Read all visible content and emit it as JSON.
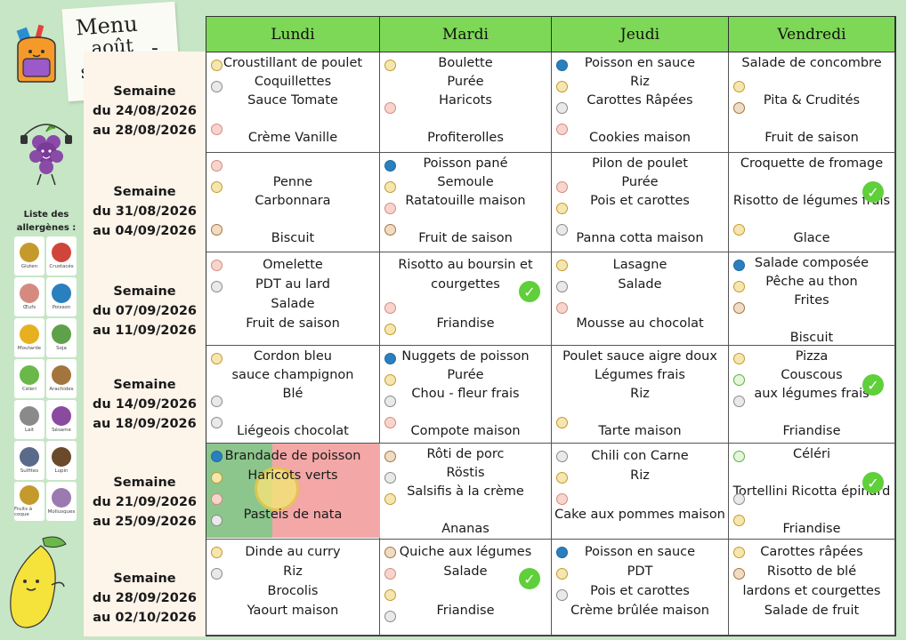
{
  "title": {
    "line1": "Menu",
    "line2": "août",
    "line3": "septembre",
    "dash": "-"
  },
  "allergens": {
    "title": "Liste des allergènes :",
    "items": [
      {
        "label": "Gluten",
        "icon": "wheat-icon",
        "color": "#c49a2c"
      },
      {
        "label": "Crustacés",
        "icon": "crab-icon",
        "color": "#d0453a"
      },
      {
        "label": "Œufs",
        "icon": "egg-icon",
        "color": "#d58a80"
      },
      {
        "label": "Poisson",
        "icon": "fish-icon",
        "color": "#2a7fbf"
      },
      {
        "label": "Moutarde",
        "icon": "mustard-icon",
        "color": "#e6b020"
      },
      {
        "label": "Soja",
        "icon": "soy-icon",
        "color": "#5fa04a"
      },
      {
        "label": "Céleri",
        "icon": "celery-icon",
        "color": "#6ab84a"
      },
      {
        "label": "Arachides",
        "icon": "peanut-icon",
        "color": "#a4743e"
      },
      {
        "label": "Lait",
        "icon": "milk-icon",
        "color": "#8a8a8a"
      },
      {
        "label": "Sésame",
        "icon": "sesame-icon",
        "color": "#8a4aa0"
      },
      {
        "label": "Sulfites",
        "icon": "sulfite-icon",
        "color": "#5a6a8a"
      },
      {
        "label": "Lupin",
        "icon": "lupin-icon",
        "color": "#6a4a2a"
      },
      {
        "label": "Fruits à coque",
        "icon": "nut-icon",
        "color": "#c49a2c"
      },
      {
        "label": "Mollusques",
        "icon": "shell-icon",
        "color": "#9a7ab0"
      }
    ]
  },
  "days": [
    "Lundi",
    "Mardi",
    "Jeudi",
    "Vendredi"
  ],
  "weeks": [
    {
      "label": "Semaine",
      "from": "du 24/08/2026",
      "to": "au 28/08/2026"
    },
    {
      "label": "Semaine",
      "from": "du 31/08/2026",
      "to": "au 04/09/2026"
    },
    {
      "label": "Semaine",
      "from": "du 07/09/2026",
      "to": "au 11/09/2026"
    },
    {
      "label": "Semaine",
      "from": "du 14/09/2026",
      "to": "au 18/09/2026"
    },
    {
      "label": "Semaine",
      "from": "du 21/09/2026",
      "to": "au 25/09/2026"
    },
    {
      "label": "Semaine",
      "from": "du 28/09/2026",
      "to": "au 02/10/2026"
    }
  ],
  "menu": [
    [
      {
        "lines": [
          "Croustillant de poulet",
          "Coquillettes",
          "Sauce Tomate",
          "",
          "Crème Vanille"
        ],
        "icons": [
          "g",
          "l",
          "",
          "o"
        ],
        "check": false
      },
      {
        "lines": [
          "Boulette",
          "Purée",
          "Haricots",
          "",
          "Profiterolles"
        ],
        "icons": [
          "g",
          "",
          "o",
          ""
        ],
        "check": false
      },
      {
        "lines": [
          "Poisson en sauce",
          "Riz",
          "Carottes Râpées",
          "",
          "Cookies maison"
        ],
        "icons": [
          "f",
          "g",
          "l",
          "o"
        ],
        "check": false
      },
      {
        "lines": [
          "Salade de concombre",
          "",
          "Pita & Crudités",
          "",
          "Fruit de saison"
        ],
        "icons": [
          "",
          "g",
          "a",
          ""
        ],
        "check": false
      }
    ],
    [
      {
        "lines": [
          "",
          "Penne",
          "Carbonnara",
          "",
          "Biscuit"
        ],
        "icons": [
          "o",
          "g",
          "",
          "a"
        ],
        "check": false
      },
      {
        "lines": [
          "Poisson pané",
          "Semoule",
          "Ratatouille maison",
          "",
          "Fruit de saison"
        ],
        "icons": [
          "f",
          "g",
          "o",
          "a"
        ],
        "check": false
      },
      {
        "lines": [
          "Pilon de poulet",
          "Purée",
          "Pois et carottes",
          "",
          "Panna cotta maison"
        ],
        "icons": [
          "",
          "o",
          "g",
          "l"
        ],
        "check": false
      },
      {
        "lines": [
          "Croquette de fromage",
          "",
          "Risotto de légumes frais",
          "",
          "Glace"
        ],
        "icons": [
          "",
          "",
          "",
          "g"
        ],
        "check": true
      }
    ],
    [
      {
        "lines": [
          "Omelette",
          "PDT au lard",
          "Salade",
          "Fruit de saison"
        ],
        "icons": [
          "o",
          "l",
          "",
          ""
        ],
        "check": false
      },
      {
        "lines": [
          "Risotto au boursin et",
          "courgettes",
          "",
          "Friandise"
        ],
        "icons": [
          "",
          "",
          "o",
          "g"
        ],
        "check": true
      },
      {
        "lines": [
          "Lasagne",
          "Salade",
          "",
          "Mousse au chocolat"
        ],
        "icons": [
          "g",
          "l",
          "o",
          ""
        ],
        "check": false
      },
      {
        "lines": [
          "Salade composée",
          "Pêche au thon",
          "Frites",
          "",
          "Biscuit"
        ],
        "icons": [
          "f",
          "g",
          "a",
          ""
        ],
        "check": false
      }
    ],
    [
      {
        "lines": [
          "Cordon bleu",
          "sauce champignon",
          "Blé",
          "",
          "Liégeois chocolat"
        ],
        "icons": [
          "g",
          "",
          "l",
          "l"
        ],
        "check": false
      },
      {
        "lines": [
          "Nuggets de poisson",
          "Purée",
          "Chou - fleur frais",
          "",
          "Compote maison"
        ],
        "icons": [
          "f",
          "g",
          "l",
          "o"
        ],
        "check": false
      },
      {
        "lines": [
          "Poulet  sauce aigre doux",
          "Légumes frais",
          "Riz",
          "",
          "Tarte maison"
        ],
        "icons": [
          "",
          "",
          "",
          "g"
        ],
        "check": false
      },
      {
        "lines": [
          "Pizza",
          "Couscous",
          "aux légumes frais",
          "",
          "Friandise"
        ],
        "icons": [
          "g",
          "c",
          "l",
          ""
        ],
        "check": true
      }
    ],
    [
      {
        "lines": [
          "Brandade de poisson",
          "Haricots verts",
          "",
          "Pasteis de nata"
        ],
        "icons": [
          "f",
          "g",
          "o",
          "l"
        ],
        "check": false,
        "flag": true
      },
      {
        "lines": [
          "Rôti de porc",
          "Röstis",
          "Salsifis à la crème",
          "",
          "Ananas"
        ],
        "icons": [
          "a",
          "l",
          "g",
          ""
        ],
        "check": false
      },
      {
        "lines": [
          "Chili con Carne",
          "Riz",
          "",
          "Cake aux pommes maison"
        ],
        "icons": [
          "l",
          "g",
          "o",
          ""
        ],
        "check": false
      },
      {
        "lines": [
          "Céléri",
          "",
          "Tortellini Ricotta épinard",
          "",
          "Friandise"
        ],
        "icons": [
          "c",
          "",
          "l",
          "g"
        ],
        "check": true
      }
    ],
    [
      {
        "lines": [
          "Dinde au curry",
          "Riz",
          "Brocolis",
          "Yaourt maison"
        ],
        "icons": [
          "g",
          "l",
          "",
          ""
        ],
        "check": false
      },
      {
        "lines": [
          "Quiche aux légumes",
          "Salade",
          "",
          "Friandise"
        ],
        "icons": [
          "a",
          "o",
          "g",
          "l"
        ],
        "check": true
      },
      {
        "lines": [
          "Poisson en sauce",
          "PDT",
          "Pois et carottes",
          "Crème brûlée maison"
        ],
        "icons": [
          "f",
          "g",
          "l",
          ""
        ],
        "check": false
      },
      {
        "lines": [
          "Carottes râpées",
          "Risotto de blé",
          "lardons et courgettes",
          "Salade de fruit"
        ],
        "icons": [
          "g",
          "a",
          "",
          ""
        ],
        "check": false
      }
    ]
  ]
}
